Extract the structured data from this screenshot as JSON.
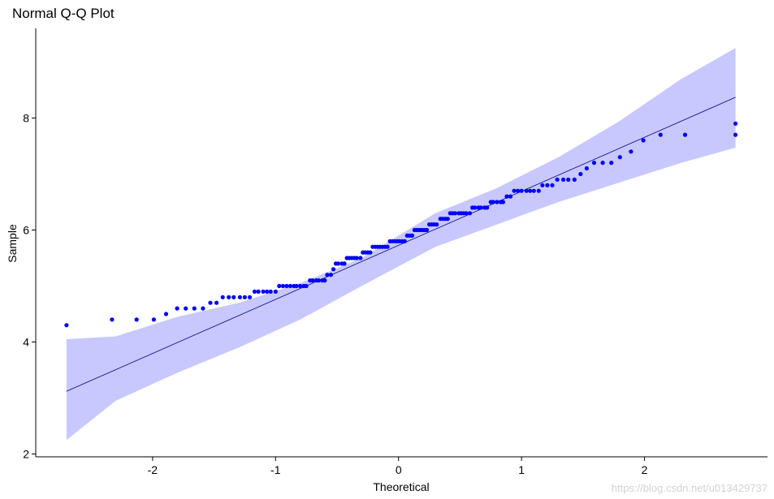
{
  "chart_data": {
    "type": "scatter",
    "title": "Normal Q-Q Plot",
    "xlabel": "Theoretical",
    "ylabel": "Sample",
    "xlim": [
      -2.95,
      3.0
    ],
    "ylim": [
      1.95,
      9.6
    ],
    "xticks": [
      -2,
      -1,
      0,
      1,
      2
    ],
    "yticks": [
      2,
      4,
      6,
      8
    ],
    "grid": false,
    "colors": {
      "points": "#0000ff",
      "line": "#00008b",
      "band": "#c8c8ff"
    },
    "reference_line": {
      "x": [
        -2.7,
        2.74
      ],
      "y": [
        3.12,
        8.37
      ]
    },
    "confidence_band": {
      "x": [
        -2.7,
        -2.3,
        -1.8,
        -1.3,
        -0.8,
        -0.3,
        0.0,
        0.3,
        0.8,
        1.3,
        1.8,
        2.3,
        2.74
      ],
      "upper": [
        4.05,
        4.1,
        4.45,
        4.7,
        5.05,
        5.5,
        5.9,
        6.3,
        6.75,
        7.3,
        7.95,
        8.7,
        9.25
      ],
      "lower": [
        2.25,
        2.95,
        3.45,
        3.9,
        4.4,
        5.0,
        5.35,
        5.7,
        6.1,
        6.5,
        6.85,
        7.2,
        7.47
      ]
    },
    "points": [
      [
        -2.7,
        4.3
      ],
      [
        -2.33,
        4.4
      ],
      [
        -2.13,
        4.4
      ],
      [
        -1.99,
        4.4
      ],
      [
        -1.89,
        4.5
      ],
      [
        -1.8,
        4.6
      ],
      [
        -1.73,
        4.6
      ],
      [
        -1.66,
        4.6
      ],
      [
        -1.59,
        4.6
      ],
      [
        -1.53,
        4.7
      ],
      [
        -1.48,
        4.7
      ],
      [
        -1.43,
        4.8
      ],
      [
        -1.38,
        4.8
      ],
      [
        -1.34,
        4.8
      ],
      [
        -1.29,
        4.8
      ],
      [
        -1.25,
        4.8
      ],
      [
        -1.21,
        4.8
      ],
      [
        -1.17,
        4.9
      ],
      [
        -1.14,
        4.9
      ],
      [
        -1.1,
        4.9
      ],
      [
        -1.07,
        4.9
      ],
      [
        -1.04,
        4.9
      ],
      [
        -1.0,
        4.9
      ],
      [
        -0.97,
        5.0
      ],
      [
        -0.94,
        5.0
      ],
      [
        -0.91,
        5.0
      ],
      [
        -0.88,
        5.0
      ],
      [
        -0.85,
        5.0
      ],
      [
        -0.83,
        5.0
      ],
      [
        -0.8,
        5.0
      ],
      [
        -0.77,
        5.0
      ],
      [
        -0.75,
        5.0
      ],
      [
        -0.72,
        5.1
      ],
      [
        -0.7,
        5.1
      ],
      [
        -0.67,
        5.1
      ],
      [
        -0.65,
        5.1
      ],
      [
        -0.62,
        5.1
      ],
      [
        -0.6,
        5.1
      ],
      [
        -0.58,
        5.2
      ],
      [
        -0.55,
        5.2
      ],
      [
        -0.53,
        5.3
      ],
      [
        -0.51,
        5.4
      ],
      [
        -0.49,
        5.4
      ],
      [
        -0.46,
        5.4
      ],
      [
        -0.44,
        5.4
      ],
      [
        -0.42,
        5.5
      ],
      [
        -0.4,
        5.5
      ],
      [
        -0.38,
        5.5
      ],
      [
        -0.36,
        5.5
      ],
      [
        -0.34,
        5.5
      ],
      [
        -0.31,
        5.5
      ],
      [
        -0.29,
        5.6
      ],
      [
        -0.27,
        5.6
      ],
      [
        -0.25,
        5.6
      ],
      [
        -0.23,
        5.6
      ],
      [
        -0.21,
        5.7
      ],
      [
        -0.19,
        5.7
      ],
      [
        -0.17,
        5.7
      ],
      [
        -0.15,
        5.7
      ],
      [
        -0.13,
        5.7
      ],
      [
        -0.11,
        5.7
      ],
      [
        -0.09,
        5.7
      ],
      [
        -0.07,
        5.8
      ],
      [
        -0.05,
        5.8
      ],
      [
        -0.03,
        5.8
      ],
      [
        -0.01,
        5.8
      ],
      [
        0.01,
        5.8
      ],
      [
        0.03,
        5.8
      ],
      [
        0.05,
        5.8
      ],
      [
        0.07,
        5.9
      ],
      [
        0.09,
        5.9
      ],
      [
        0.11,
        5.9
      ],
      [
        0.13,
        6.0
      ],
      [
        0.15,
        6.0
      ],
      [
        0.17,
        6.0
      ],
      [
        0.19,
        6.0
      ],
      [
        0.21,
        6.0
      ],
      [
        0.23,
        6.0
      ],
      [
        0.25,
        6.1
      ],
      [
        0.27,
        6.1
      ],
      [
        0.29,
        6.1
      ],
      [
        0.31,
        6.1
      ],
      [
        0.34,
        6.2
      ],
      [
        0.36,
        6.2
      ],
      [
        0.38,
        6.2
      ],
      [
        0.4,
        6.2
      ],
      [
        0.42,
        6.3
      ],
      [
        0.44,
        6.3
      ],
      [
        0.46,
        6.3
      ],
      [
        0.49,
        6.3
      ],
      [
        0.51,
        6.3
      ],
      [
        0.53,
        6.3
      ],
      [
        0.55,
        6.3
      ],
      [
        0.58,
        6.3
      ],
      [
        0.6,
        6.4
      ],
      [
        0.62,
        6.4
      ],
      [
        0.65,
        6.4
      ],
      [
        0.67,
        6.4
      ],
      [
        0.7,
        6.4
      ],
      [
        0.72,
        6.4
      ],
      [
        0.75,
        6.5
      ],
      [
        0.77,
        6.5
      ],
      [
        0.8,
        6.5
      ],
      [
        0.83,
        6.5
      ],
      [
        0.85,
        6.5
      ],
      [
        0.88,
        6.6
      ],
      [
        0.91,
        6.6
      ],
      [
        0.94,
        6.7
      ],
      [
        0.97,
        6.7
      ],
      [
        1.0,
        6.7
      ],
      [
        1.04,
        6.7
      ],
      [
        1.07,
        6.7
      ],
      [
        1.1,
        6.7
      ],
      [
        1.14,
        6.7
      ],
      [
        1.17,
        6.8
      ],
      [
        1.21,
        6.8
      ],
      [
        1.25,
        6.8
      ],
      [
        1.29,
        6.9
      ],
      [
        1.34,
        6.9
      ],
      [
        1.38,
        6.9
      ],
      [
        1.43,
        6.9
      ],
      [
        1.48,
        7.0
      ],
      [
        1.53,
        7.1
      ],
      [
        1.59,
        7.2
      ],
      [
        1.66,
        7.2
      ],
      [
        1.73,
        7.2
      ],
      [
        1.8,
        7.3
      ],
      [
        1.89,
        7.4
      ],
      [
        1.99,
        7.6
      ],
      [
        2.13,
        7.7
      ],
      [
        2.33,
        7.7
      ],
      [
        2.74,
        7.7
      ],
      [
        2.74,
        7.9
      ]
    ]
  },
  "watermark": "https://blog.csdn.net/u013429737"
}
